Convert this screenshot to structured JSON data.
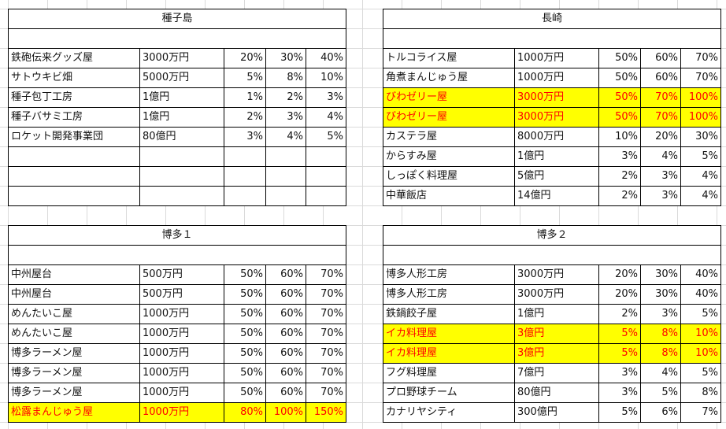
{
  "tables": {
    "tanegashima": {
      "title": "種子島",
      "rows": [
        {
          "name": "鉄砲伝来グッズ屋",
          "price": "3000万円",
          "p1": "20%",
          "p2": "30%",
          "p3": "40%"
        },
        {
          "name": "サトウキビ畑",
          "price": "5000万円",
          "p1": "5%",
          "p2": "8%",
          "p3": "10%"
        },
        {
          "name": "種子包丁工房",
          "price": "1億円",
          "p1": "1%",
          "p2": "2%",
          "p3": "3%"
        },
        {
          "name": "種子バサミ工房",
          "price": "1億円",
          "p1": "2%",
          "p2": "3%",
          "p3": "4%"
        },
        {
          "name": "ロケット開発事業団",
          "price": "80億円",
          "p1": "3%",
          "p2": "4%",
          "p3": "5%"
        },
        {
          "name": "",
          "price": "",
          "p1": "",
          "p2": "",
          "p3": ""
        },
        {
          "name": "",
          "price": "",
          "p1": "",
          "p2": "",
          "p3": ""
        },
        {
          "name": "",
          "price": "",
          "p1": "",
          "p2": "",
          "p3": ""
        }
      ]
    },
    "nagasaki": {
      "title": "長崎",
      "rows": [
        {
          "name": "トルコライス屋",
          "price": "1000万円",
          "p1": "50%",
          "p2": "60%",
          "p3": "70%"
        },
        {
          "name": "角煮まんじゅう屋",
          "price": "1000万円",
          "p1": "50%",
          "p2": "60%",
          "p3": "70%"
        },
        {
          "name": "びわゼリー屋",
          "price": "3000万円",
          "p1": "50%",
          "p2": "70%",
          "p3": "100%"
        },
        {
          "name": "びわゼリー屋",
          "price": "3000万円",
          "p1": "50%",
          "p2": "70%",
          "p3": "100%"
        },
        {
          "name": "カステラ屋",
          "price": "8000万円",
          "p1": "10%",
          "p2": "20%",
          "p3": "30%"
        },
        {
          "name": "からすみ屋",
          "price": "1億円",
          "p1": "3%",
          "p2": "4%",
          "p3": "5%"
        },
        {
          "name": "しっぽく料理屋",
          "price": "5億円",
          "p1": "2%",
          "p2": "3%",
          "p3": "4%"
        },
        {
          "name": "中華飯店",
          "price": "14億円",
          "p1": "2%",
          "p2": "3%",
          "p3": "4%"
        }
      ]
    },
    "hakata1": {
      "title": "博多１",
      "rows": [
        {
          "name": "中州屋台",
          "price": "500万円",
          "p1": "50%",
          "p2": "60%",
          "p3": "70%"
        },
        {
          "name": "中州屋台",
          "price": "500万円",
          "p1": "50%",
          "p2": "60%",
          "p3": "70%"
        },
        {
          "name": "めんたいこ屋",
          "price": "1000万円",
          "p1": "50%",
          "p2": "60%",
          "p3": "70%"
        },
        {
          "name": "めんたいこ屋",
          "price": "1000万円",
          "p1": "50%",
          "p2": "60%",
          "p3": "70%"
        },
        {
          "name": "博多ラーメン屋",
          "price": "1000万円",
          "p1": "50%",
          "p2": "60%",
          "p3": "70%"
        },
        {
          "name": "博多ラーメン屋",
          "price": "1000万円",
          "p1": "50%",
          "p2": "60%",
          "p3": "70%"
        },
        {
          "name": "博多ラーメン屋",
          "price": "1000万円",
          "p1": "50%",
          "p2": "60%",
          "p3": "70%"
        },
        {
          "name": "松露まんじゅう屋",
          "price": "1000万円",
          "p1": "80%",
          "p2": "100%",
          "p3": "150%"
        }
      ]
    },
    "hakata2": {
      "title": "博多２",
      "rows": [
        {
          "name": "博多人形工房",
          "price": "3000万円",
          "p1": "20%",
          "p2": "30%",
          "p3": "40%"
        },
        {
          "name": "博多人形工房",
          "price": "3000万円",
          "p1": "20%",
          "p2": "30%",
          "p3": "40%"
        },
        {
          "name": "鉄鍋餃子屋",
          "price": "1億円",
          "p1": "2%",
          "p2": "3%",
          "p3": "5%"
        },
        {
          "name": "イカ料理屋",
          "price": "3億円",
          "p1": "5%",
          "p2": "8%",
          "p3": "10%"
        },
        {
          "name": "イカ料理屋",
          "price": "3億円",
          "p1": "5%",
          "p2": "8%",
          "p3": "10%"
        },
        {
          "name": "フグ料理屋",
          "price": "7億円",
          "p1": "3%",
          "p2": "4%",
          "p3": "5%"
        },
        {
          "name": "プロ野球チーム",
          "price": "80億円",
          "p1": "3%",
          "p2": "5%",
          "p3": "8%"
        },
        {
          "name": "カナリヤシティ",
          "price": "300億円",
          "p1": "5%",
          "p2": "6%",
          "p3": "7%"
        }
      ]
    }
  },
  "highlight": {
    "fill": "#ffff00",
    "text": "#ff0000"
  }
}
